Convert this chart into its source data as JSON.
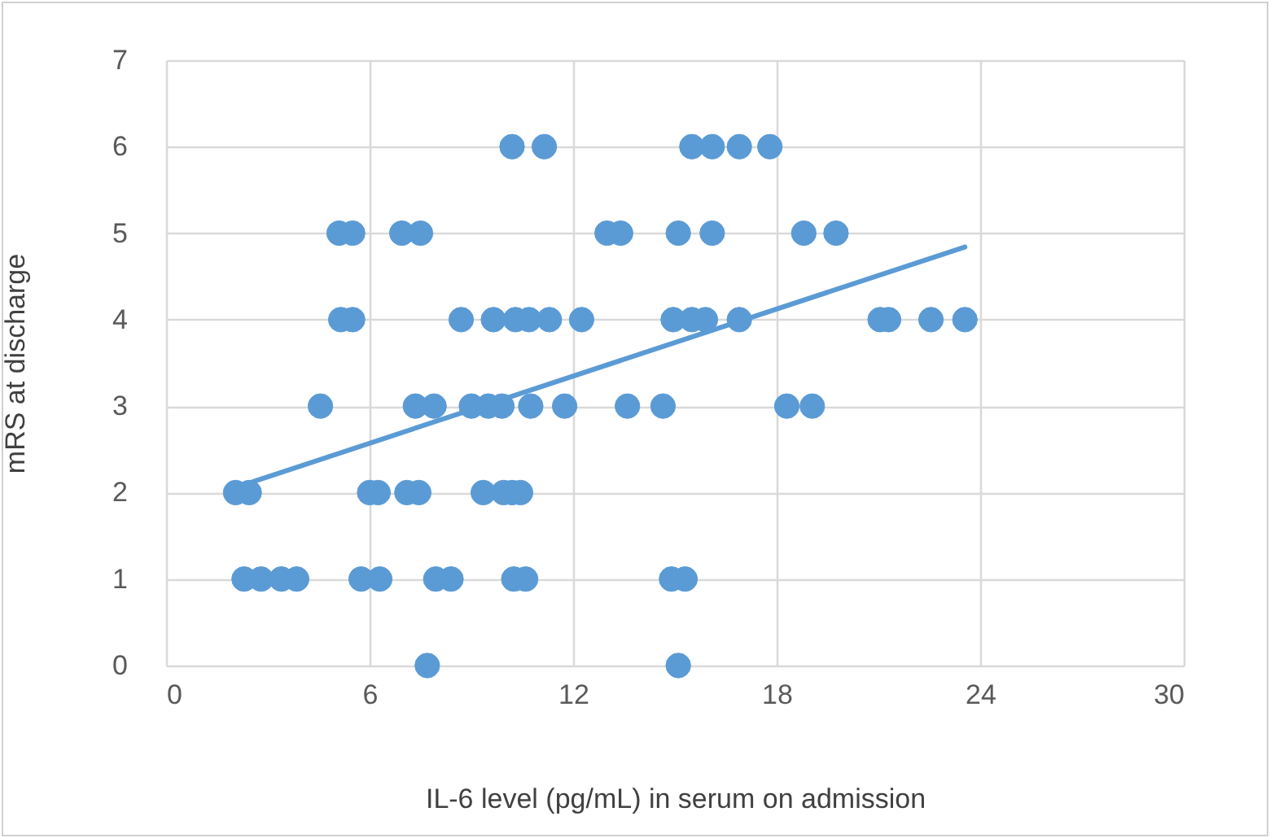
{
  "chart_data": {
    "type": "scatter",
    "xlabel": "IL-6 level (pg/mL) in serum on admission",
    "ylabel": "mRS at discharge",
    "xlim": [
      0,
      30
    ],
    "xticks": [
      0,
      6,
      12,
      18,
      24,
      30
    ],
    "ylim": [
      0,
      7
    ],
    "yticks": [
      0,
      1,
      2,
      3,
      4,
      5,
      6,
      7
    ],
    "grid": true,
    "series": [
      {
        "color": "#5b9bd5",
        "marker": "circle",
        "x": [
          10.2,
          11.15,
          15.5,
          16.1,
          16.9,
          17.8,
          5.1,
          5.5,
          6.95,
          7.5,
          13.0,
          13.4,
          15.1,
          16.1,
          18.8,
          19.75,
          5.15,
          5.5,
          8.7,
          9.65,
          10.3,
          10.7,
          11.3,
          12.25,
          14.95,
          15.5,
          15.9,
          16.9,
          21.05,
          21.3,
          22.55,
          23.55,
          4.55,
          7.35,
          7.9,
          9.0,
          9.5,
          9.9,
          10.75,
          11.75,
          13.6,
          14.65,
          18.3,
          19.05,
          2.05,
          2.45,
          6.0,
          6.25,
          7.1,
          7.45,
          9.35,
          9.95,
          10.2,
          10.45,
          2.3,
          2.8,
          3.4,
          3.85,
          5.75,
          6.3,
          7.95,
          8.4,
          10.25,
          10.6,
          14.9,
          15.3,
          7.7,
          15.1
        ],
        "values": [
          6,
          6,
          6,
          6,
          6,
          6,
          5,
          5,
          5,
          5,
          5,
          5,
          5,
          5,
          5,
          5,
          4,
          4,
          4,
          4,
          4,
          4,
          4,
          4,
          4,
          4,
          4,
          4,
          4,
          4,
          4,
          4,
          3,
          3,
          3,
          3,
          3,
          3,
          3,
          3,
          3,
          3,
          3,
          3,
          2,
          2,
          2,
          2,
          2,
          2,
          2,
          2,
          2,
          2,
          1,
          1,
          1,
          1,
          1,
          1,
          1,
          1,
          1,
          1,
          1,
          1,
          0,
          0
        ]
      },
      {
        "type": "line",
        "color": "#5b9bd5",
        "x": [
          2.05,
          23.55
        ],
        "values": [
          2.06,
          4.84
        ]
      }
    ]
  }
}
